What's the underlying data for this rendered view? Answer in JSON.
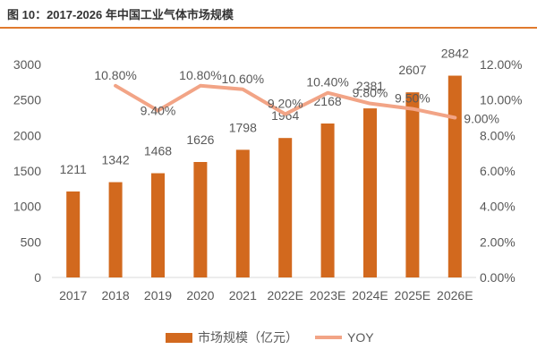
{
  "figure": {
    "title": "图 10：2017-2026 年中国工业气体市场规模"
  },
  "colors": {
    "bar": "#d2691e",
    "line": "#f2a486",
    "axis": "#d9d9d9",
    "text": "#595959",
    "accent": "#e07a2e"
  },
  "chart_data": {
    "type": "bar",
    "title": "图 10：2017-2026 年中国工业气体市场规模",
    "categories": [
      "2017",
      "2018",
      "2019",
      "2020",
      "2021",
      "2022E",
      "2023E",
      "2024E",
      "2025E",
      "2026E"
    ],
    "series": [
      {
        "name": "市场规模（亿元）",
        "type": "bar",
        "axis": "left",
        "values": [
          1211,
          1342,
          1468,
          1626,
          1798,
          1964,
          2168,
          2381,
          2607,
          2842
        ],
        "labels": [
          "1211",
          "1342",
          "1468",
          "1626",
          "1798",
          "1964",
          "2168",
          "2381",
          "2607",
          "2842"
        ]
      },
      {
        "name": "YOY",
        "type": "line",
        "axis": "right",
        "values": [
          null,
          10.8,
          9.4,
          10.8,
          10.6,
          9.2,
          10.4,
          9.8,
          9.5,
          9.0
        ],
        "labels": [
          null,
          "10.80%",
          "9.40%",
          "10.80%",
          "10.60%",
          "9.20%",
          "10.40%",
          "9.80%",
          "9.50%",
          "9.00%"
        ]
      }
    ],
    "y_left": {
      "ylim": [
        0,
        3000
      ],
      "ticks": [
        0,
        500,
        1000,
        1500,
        2000,
        2500,
        3000
      ],
      "tick_labels": [
        "0",
        "500",
        "1000",
        "1500",
        "2000",
        "2500",
        "3000"
      ]
    },
    "y_right": {
      "ylim": [
        0,
        12
      ],
      "ticks": [
        0,
        2,
        4,
        6,
        8,
        10,
        12
      ],
      "tick_labels": [
        "0.00%",
        "2.00%",
        "4.00%",
        "6.00%",
        "8.00%",
        "10.00%",
        "12.00%"
      ]
    },
    "legend": {
      "position": "bottom",
      "entries": [
        "市场规模（亿元）",
        "YOY"
      ]
    },
    "grid": false
  }
}
